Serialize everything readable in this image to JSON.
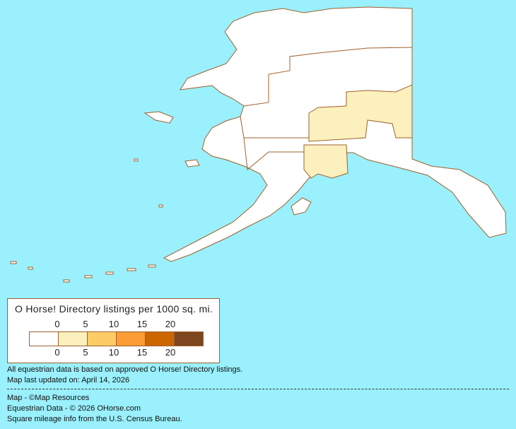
{
  "legend": {
    "title": "O Horse! Directory listings per 1000 sq. mi.",
    "top_ticks": [
      "0",
      "5",
      "10",
      "15",
      "20"
    ],
    "bottom_ticks": [
      "0",
      "5",
      "10",
      "15",
      "20"
    ],
    "colors": [
      "#FFFFFF",
      "#FBF0BE",
      "#FDCC66",
      "#FB9C34",
      "#CC6600",
      "#7D461E"
    ]
  },
  "map": {
    "background": "#9AF0FC",
    "border_color": "#A0602C",
    "shaded_regions_level": "0-5"
  },
  "notes": {
    "data_basis": "All equestrian data is based on approved O Horse! Directory listings.",
    "updated": "Map last updated on: April 14, 2026",
    "map_credit": "Map - ©Map Resources",
    "data_credit": "Equestrian Data - © 2026 OHorse.com",
    "census_credit": "Square mileage info from the U.S. Census Bureau."
  }
}
